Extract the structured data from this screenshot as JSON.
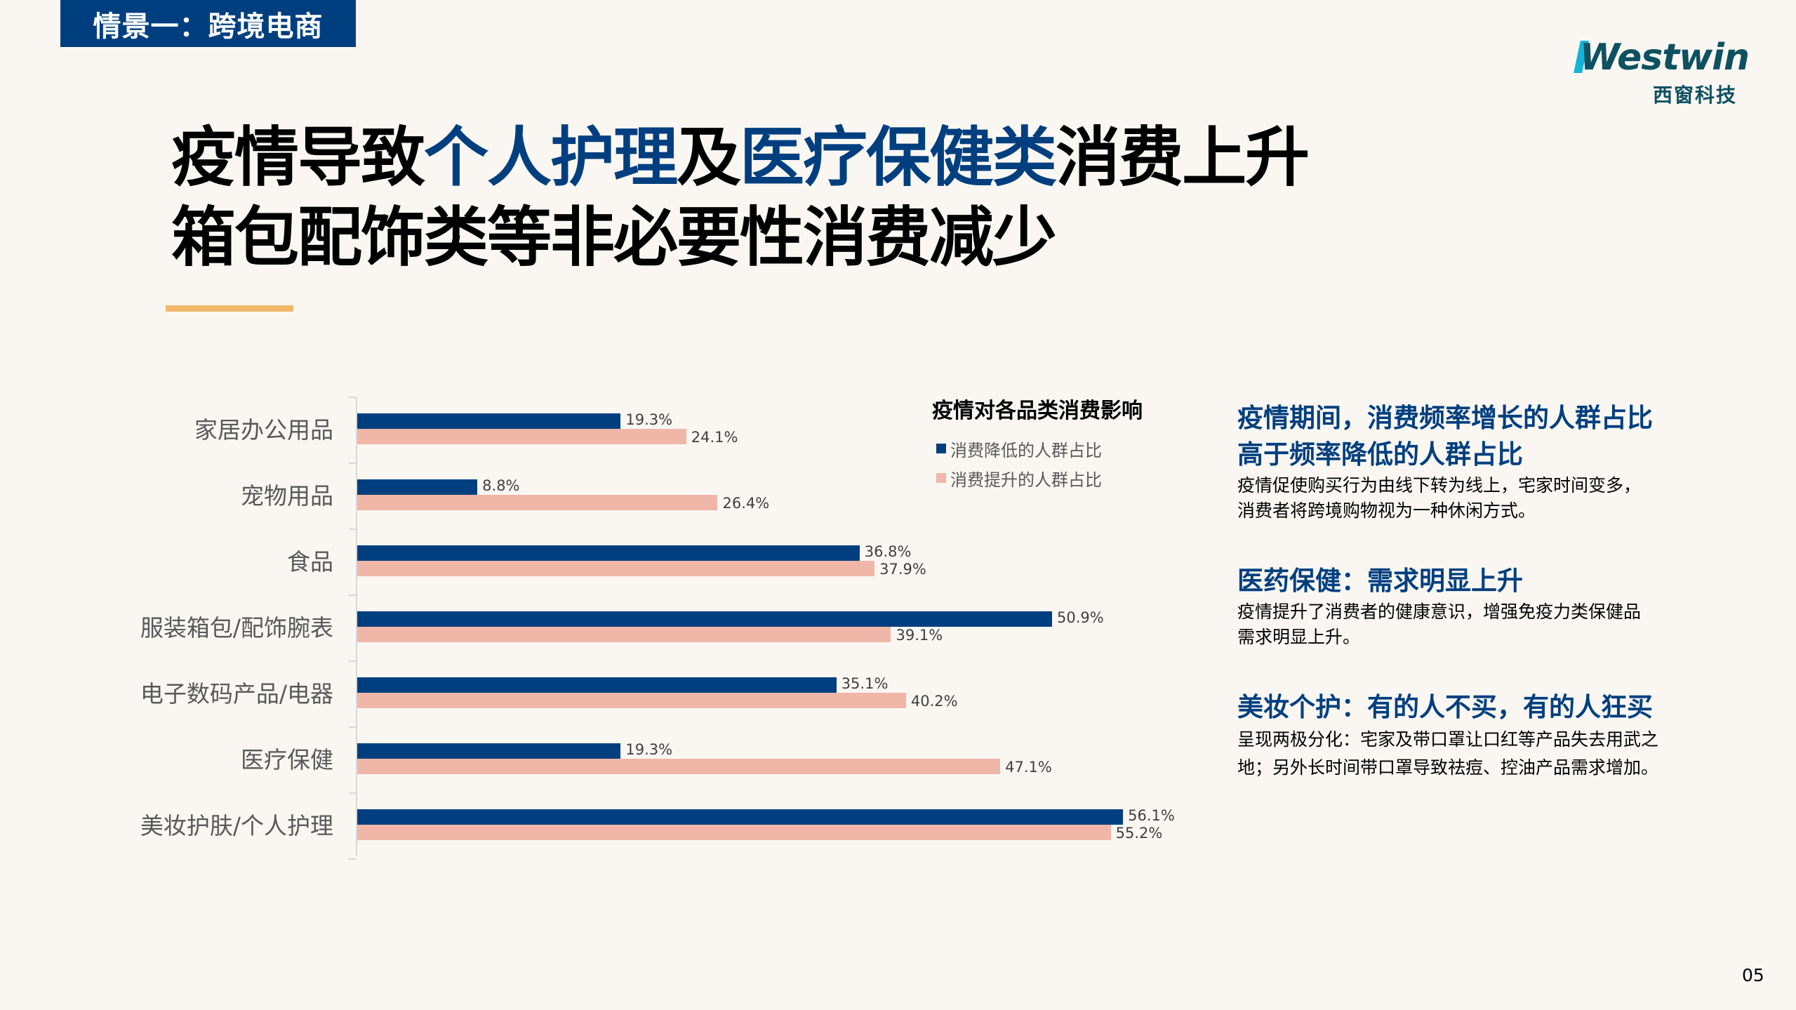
{
  "section_tag": "情景一：跨境电商",
  "logo": {
    "word": "Westwin",
    "cn": "西窗科技"
  },
  "headline": {
    "line1": [
      {
        "text": "疫情导致",
        "highlight": false
      },
      {
        "text": "个人护理",
        "highlight": true
      },
      {
        "text": "及",
        "highlight": false
      },
      {
        "text": "医疗保健类",
        "highlight": true
      },
      {
        "text": "消费上升",
        "highlight": false
      }
    ],
    "line2": "箱包配饰类等非必要性消费减少"
  },
  "colors": {
    "navy": "#003f7f",
    "pink": "#f0b7a8",
    "accent": "#f2b867",
    "background": "#faf7f3"
  },
  "chart_data": {
    "type": "bar",
    "orientation": "horizontal",
    "title": "疫情对各品类消费影响",
    "categories": [
      "家居办公用品",
      "宠物用品",
      "食品",
      "服装箱包/配饰腕表",
      "电子数码产品/电器",
      "医疗保健",
      "美妆护肤/个人护理"
    ],
    "series": [
      {
        "name": "消费降低的人群占比",
        "color": "#003f7f",
        "values": [
          19.3,
          8.8,
          36.8,
          50.9,
          35.1,
          19.3,
          56.1
        ],
        "labels": [
          "19.3%",
          "8.8%",
          "36.8%",
          "50.9%",
          "35.1%",
          "19.3%",
          "56.1%"
        ]
      },
      {
        "name": "消费提升的人群占比",
        "color": "#f0b7a8",
        "values": [
          24.1,
          26.4,
          37.9,
          39.1,
          40.2,
          47.1,
          55.2
        ],
        "labels": [
          "24.1%",
          "26.4%",
          "37.9%",
          "39.1%",
          "40.2%",
          "47.1%",
          "55.2%"
        ]
      }
    ],
    "xlabel": "",
    "ylabel": "",
    "unit": "%",
    "grid": false,
    "legend_position": "top-right"
  },
  "legend": {
    "title": "疫情对各品类消费影响",
    "items": [
      {
        "label": "消费降低的人群占比"
      },
      {
        "label": "消费提升的人群占比"
      }
    ]
  },
  "notes": [
    {
      "title_lines": [
        "疫情期间，消费频率增长的人群占比",
        "高于频率降低的人群占比"
      ],
      "body_lines": [
        "疫情促使购买行为由线下转为线上，宅家时间变多，",
        "消费者将跨境购物视为一种休闲方式。"
      ]
    },
    {
      "title_lines": [
        "医药保健：需求明显上升"
      ],
      "body_lines": [
        "疫情提升了消费者的健康意识，增强免疫力类保健品",
        "需求明显上升。"
      ]
    },
    {
      "title_lines": [
        "美妆个护：有的人不买，有的人狂买"
      ],
      "body_lines": [
        "呈现两极分化：宅家及带口罩让口红等产品失去用武之",
        "地；另外长时间带口罩导致祛痘、控油产品需求增加。"
      ]
    }
  ],
  "page_number": "05"
}
